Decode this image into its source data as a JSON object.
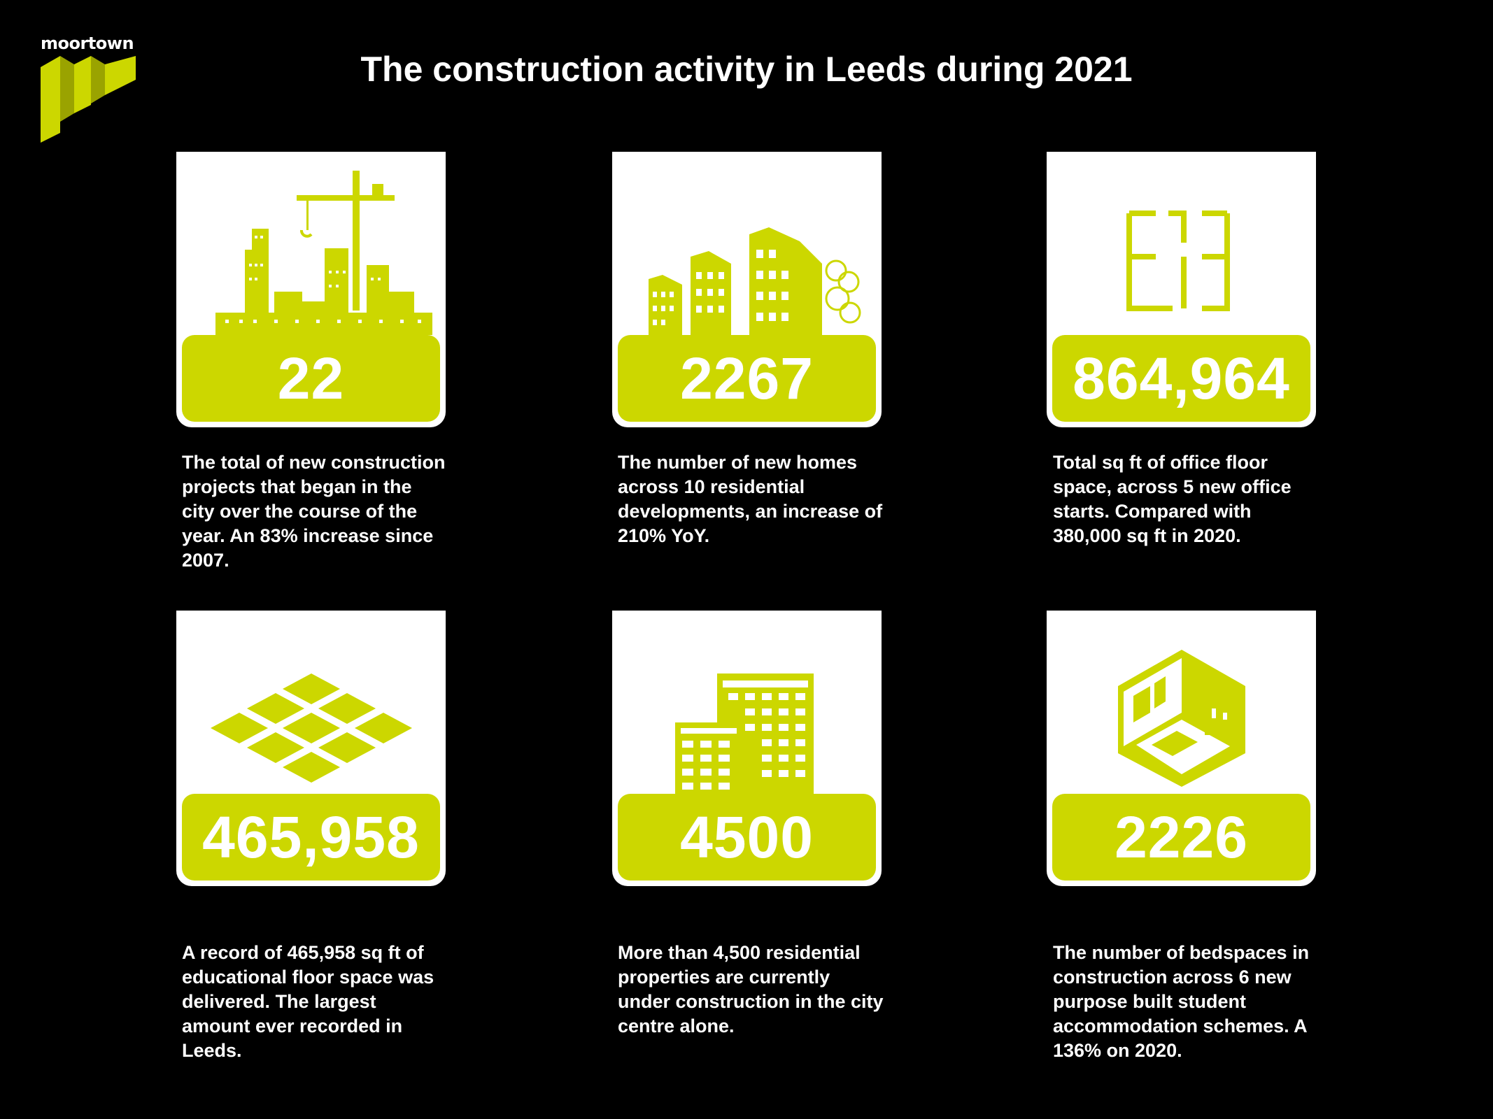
{
  "brand": {
    "name": "moortown",
    "accent": "#ccd700",
    "accent_dark": "#9aa300"
  },
  "title": "The construction activity in Leeds during 2021",
  "cards": [
    {
      "value": "22",
      "icon": "city-crane-icon",
      "description": "The total of new construction projects that began in the city over the course of the year. An 83% increase since 2007."
    },
    {
      "value": "2267",
      "icon": "residential-buildings-icon",
      "description": "The number of new homes across 10 residential developments, an increase of 210% YoY."
    },
    {
      "value": "864,964",
      "icon": "floor-plan-icon",
      "description": "Total sq ft of office floor space, across 5 new office starts. Compared with 380,000 sq ft in 2020."
    },
    {
      "value": "465,958",
      "icon": "floor-tiles-icon",
      "description": "A record of 465,958 sq ft of educational floor space was delivered. The largest amount ever recorded in Leeds."
    },
    {
      "value": "4500",
      "icon": "tower-blocks-icon",
      "description": "More than 4,500 residential properties are currently under construction in the city centre alone."
    },
    {
      "value": "2226",
      "icon": "bedroom-isometric-icon",
      "description": "The number of bedspaces in construction across 6 new purpose built student accommodation schemes. A 136% on 2020."
    }
  ]
}
